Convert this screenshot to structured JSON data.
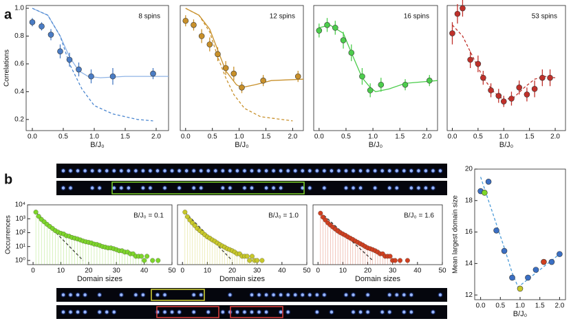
{
  "panel_labels": [
    "a",
    "b"
  ],
  "chart_data": [
    {
      "type": "scatter",
      "title": "8 spins",
      "xlabel": "B/J₀",
      "ylabel": "Correlations",
      "xlim": [
        -0.1,
        2.2
      ],
      "ylim": [
        0.12,
        1.02
      ],
      "xticks": [
        {
          "value": 0,
          "label": "0.0"
        },
        {
          "value": 0.5,
          "label": "0.5"
        },
        {
          "value": 1,
          "label": "1.0"
        },
        {
          "value": 1.5,
          "label": "1.5"
        },
        {
          "value": 2,
          "label": "2.0"
        }
      ],
      "yticks": [
        0.2,
        0.4,
        0.6,
        0.8,
        {
          "value": 1,
          "label": "1.0"
        }
      ],
      "points": {
        "color": "#4a7cc4",
        "x": [
          0,
          0.15,
          0.3,
          0.45,
          0.6,
          0.75,
          0.95,
          1.3,
          1.95
        ],
        "values": [
          0.9,
          0.87,
          0.81,
          0.69,
          0.63,
          0.56,
          0.51,
          0.51,
          0.53
        ],
        "errors": [
          0.03,
          0.03,
          0.04,
          0.05,
          0.05,
          0.05,
          0.05,
          0.06,
          0.04
        ]
      },
      "curves": [
        {
          "color": "#8fb4e6",
          "dashed": false,
          "x": [
            0,
            0.25,
            0.45,
            0.6,
            0.75,
            0.9,
            1.1,
            1.5,
            2.2
          ],
          "values": [
            1.0,
            0.95,
            0.8,
            0.65,
            0.55,
            0.51,
            0.5,
            0.51,
            0.51
          ]
        },
        {
          "color": "#4a86d0",
          "dashed": true,
          "x": [
            0,
            0.25,
            0.45,
            0.6,
            0.8,
            1.0,
            1.3,
            1.7,
            1.95
          ],
          "values": [
            1.0,
            0.95,
            0.8,
            0.6,
            0.42,
            0.3,
            0.24,
            0.2,
            0.19
          ]
        }
      ]
    },
    {
      "type": "scatter",
      "title": "12 spins",
      "xlabel": "B/J₀",
      "xlim": [
        -0.1,
        2.2
      ],
      "ylim": [
        0.12,
        1.02
      ],
      "xticks": [
        {
          "value": 0,
          "label": "0.0"
        },
        {
          "value": 0.5,
          "label": "0.5"
        },
        {
          "value": 1,
          "label": "1.0"
        },
        {
          "value": 1.5,
          "label": "1.5"
        },
        {
          "value": 2,
          "label": "2.0"
        }
      ],
      "points": {
        "color": "#c8902a",
        "x": [
          0,
          0.15,
          0.3,
          0.45,
          0.6,
          0.75,
          0.9,
          1.05,
          1.45,
          2.1
        ],
        "values": [
          0.91,
          0.88,
          0.8,
          0.74,
          0.67,
          0.57,
          0.53,
          0.43,
          0.48,
          0.51
        ],
        "errors": [
          0.04,
          0.04,
          0.05,
          0.05,
          0.05,
          0.05,
          0.05,
          0.04,
          0.04,
          0.04
        ]
      },
      "curves": [
        {
          "color": "#c8902a",
          "dashed": false,
          "x": [
            0,
            0.25,
            0.45,
            0.6,
            0.75,
            0.95,
            1.05,
            1.3,
            1.6,
            2.2
          ],
          "values": [
            1.0,
            0.95,
            0.85,
            0.7,
            0.55,
            0.45,
            0.43,
            0.45,
            0.48,
            0.49
          ]
        },
        {
          "color": "#c8902a",
          "dashed": true,
          "x": [
            0,
            0.25,
            0.45,
            0.6,
            0.75,
            0.9,
            1.1,
            1.4,
            2.0
          ],
          "values": [
            1.0,
            0.95,
            0.83,
            0.65,
            0.5,
            0.38,
            0.28,
            0.22,
            0.19
          ]
        }
      ]
    },
    {
      "type": "scatter",
      "title": "16 spins",
      "xlabel": "B/J₀",
      "xlim": [
        -0.1,
        2.2
      ],
      "ylim": [
        0.12,
        1.02
      ],
      "xticks": [
        {
          "value": 0,
          "label": "0.0"
        },
        {
          "value": 0.5,
          "label": "0.5"
        },
        {
          "value": 1,
          "label": "1.0"
        },
        {
          "value": 1.5,
          "label": "1.5"
        },
        {
          "value": 2,
          "label": "2.0"
        }
      ],
      "points": {
        "color": "#4ccd4c",
        "x": [
          0,
          0.15,
          0.3,
          0.45,
          0.6,
          0.8,
          0.95,
          1.15,
          1.6,
          2.05
        ],
        "values": [
          0.84,
          0.88,
          0.86,
          0.77,
          0.68,
          0.51,
          0.41,
          0.45,
          0.45,
          0.48
        ],
        "errors": [
          0.05,
          0.05,
          0.05,
          0.06,
          0.06,
          0.06,
          0.05,
          0.05,
          0.04,
          0.04
        ]
      },
      "curves": [
        {
          "color": "#4ccd4c",
          "dashed": false,
          "x": [
            0,
            0.2,
            0.45,
            0.6,
            0.8,
            0.95,
            1.05,
            1.3,
            1.6,
            2.2
          ],
          "values": [
            0.86,
            0.88,
            0.82,
            0.68,
            0.5,
            0.43,
            0.4,
            0.42,
            0.46,
            0.48
          ]
        }
      ]
    },
    {
      "type": "scatter",
      "title": "53 spins",
      "xlabel": "B/J₀",
      "xlim": [
        -0.1,
        2.2
      ],
      "ylim": [
        0.12,
        1.02
      ],
      "xticks": [
        {
          "value": 0,
          "label": "0.0"
        },
        {
          "value": 0.5,
          "label": "0.5"
        },
        {
          "value": 1,
          "label": "1.0"
        },
        {
          "value": 1.5,
          "label": "1.5"
        },
        {
          "value": 2,
          "label": "2.0"
        }
      ],
      "points": {
        "color": "#c0302a",
        "x": [
          0,
          0.1,
          0.2,
          0.35,
          0.5,
          0.6,
          0.75,
          0.9,
          1.0,
          1.15,
          1.3,
          1.45,
          1.6,
          1.75,
          1.9
        ],
        "values": [
          0.82,
          0.96,
          1.0,
          0.63,
          0.6,
          0.5,
          0.41,
          0.37,
          0.33,
          0.35,
          0.43,
          0.38,
          0.42,
          0.5,
          0.5
        ],
        "errors": [
          0.08,
          0.07,
          0.06,
          0.06,
          0.06,
          0.05,
          0.05,
          0.05,
          0.04,
          0.05,
          0.05,
          0.05,
          0.06,
          0.06,
          0.06
        ]
      },
      "curves": [
        {
          "color": "#c0302a",
          "dashed": true,
          "x": [
            0,
            0.2,
            0.4,
            0.6,
            0.8,
            1.0,
            1.2,
            1.4,
            1.6,
            1.8,
            2.0
          ],
          "values": [
            0.88,
            0.8,
            0.65,
            0.5,
            0.4,
            0.34,
            0.36,
            0.43,
            0.49,
            0.51,
            0.5
          ]
        }
      ]
    },
    {
      "type": "scatter",
      "log_y": true,
      "stems": true,
      "title": "B/J₀ = 0.1",
      "xlabel": "Domain sizes",
      "ylabel": "Occurrences",
      "xlim": [
        -2,
        50
      ],
      "ylim": [
        0.5,
        10000
      ],
      "xticks": [
        0,
        10,
        20,
        30,
        40,
        50
      ],
      "yticks": [
        {
          "value": 1,
          "label": "10⁰"
        },
        {
          "value": 10,
          "label": "10¹"
        },
        {
          "value": 100,
          "label": "10²"
        },
        {
          "value": 1000,
          "label": "10³"
        },
        {
          "value": 10000,
          "label": "10⁴"
        }
      ],
      "points": {
        "color": "#7ed62b",
        "x": [
          1,
          2,
          3,
          4,
          5,
          6,
          7,
          8,
          9,
          10,
          11,
          12,
          13,
          14,
          15,
          16,
          17,
          18,
          19,
          20,
          21,
          22,
          23,
          24,
          25,
          26,
          27,
          28,
          29,
          30,
          31,
          32,
          33,
          34,
          35,
          36,
          37,
          38,
          39,
          40,
          41,
          43,
          45
        ],
        "values": [
          3000,
          1500,
          900,
          600,
          400,
          280,
          200,
          140,
          110,
          90,
          80,
          60,
          55,
          45,
          40,
          35,
          30,
          25,
          22,
          20,
          18,
          15,
          14,
          12,
          10,
          9,
          8,
          8,
          7,
          6,
          5,
          5,
          4,
          4,
          3,
          3,
          2,
          2,
          2,
          1,
          2,
          1,
          1
        ]
      },
      "curves": [
        {
          "color": "#333333",
          "dashed": true,
          "x": [
            1,
            18
          ],
          "values": [
            3000,
            1
          ]
        }
      ]
    },
    {
      "type": "scatter",
      "log_y": true,
      "stems": true,
      "title": "B/J₀ = 1.0",
      "xlabel": "Domain sizes",
      "xlim": [
        -2,
        50
      ],
      "ylim": [
        0.5,
        10000
      ],
      "xticks": [
        0,
        10,
        20,
        30,
        40,
        50
      ],
      "points": {
        "color": "#c8c82a",
        "x": [
          1,
          2,
          3,
          4,
          5,
          6,
          7,
          8,
          9,
          10,
          11,
          12,
          13,
          14,
          15,
          16,
          17,
          18,
          19,
          20,
          21,
          22,
          23,
          24,
          25,
          26,
          27,
          28,
          29,
          30,
          32
        ],
        "values": [
          3000,
          1400,
          800,
          500,
          320,
          200,
          140,
          100,
          70,
          50,
          40,
          30,
          24,
          18,
          14,
          11,
          9,
          7,
          6,
          5,
          4,
          3,
          3,
          2,
          2,
          2,
          1,
          2,
          1,
          1,
          1
        ]
      },
      "curves": [
        {
          "color": "#333333",
          "dashed": true,
          "x": [
            1,
            20
          ],
          "values": [
            3000,
            1
          ]
        }
      ]
    },
    {
      "type": "scatter",
      "log_y": true,
      "stems": true,
      "title": "B/J₀ = 1.6",
      "xlabel": "Domain sizes",
      "xlim": [
        -2,
        50
      ],
      "ylim": [
        0.5,
        10000
      ],
      "xticks": [
        0,
        10,
        20,
        30,
        40,
        50
      ],
      "points": {
        "color": "#d04020",
        "x": [
          1,
          2,
          3,
          4,
          5,
          6,
          7,
          8,
          9,
          10,
          11,
          12,
          13,
          14,
          15,
          16,
          17,
          18,
          19,
          20,
          21,
          22,
          23,
          24,
          25,
          26,
          27,
          28,
          29,
          30,
          31,
          33,
          36
        ],
        "values": [
          2500,
          1300,
          800,
          500,
          350,
          250,
          180,
          130,
          100,
          80,
          65,
          50,
          40,
          32,
          25,
          20,
          16,
          13,
          10,
          8,
          7,
          6,
          5,
          4,
          3,
          3,
          2,
          2,
          2,
          1,
          1,
          1,
          1
        ]
      },
      "curves": [
        {
          "color": "#333333",
          "dashed": true,
          "x": [
            1,
            22
          ],
          "values": [
            3000,
            1
          ]
        }
      ]
    },
    {
      "type": "scatter",
      "xlabel": "B/J₀",
      "ylabel": "Mean largest domain size",
      "xlim": [
        -0.15,
        2.15
      ],
      "ylim": [
        11.7,
        20
      ],
      "xticks": [
        {
          "value": 0,
          "label": "0.0"
        },
        {
          "value": 0.5,
          "label": "0.5"
        },
        {
          "value": 1,
          "label": "1.0"
        },
        {
          "value": 1.5,
          "label": "1.5"
        },
        {
          "value": 2,
          "label": "2.0"
        }
      ],
      "yticks": [
        12,
        14,
        16,
        18,
        20
      ],
      "points": {
        "color": "#3a6fc4",
        "x": [
          0,
          0.1,
          0.2,
          0.4,
          0.6,
          0.8,
          1.0,
          1.2,
          1.4,
          1.6,
          1.8,
          2.0
        ],
        "values": [
          18.6,
          18.5,
          19.2,
          16.1,
          14.8,
          13.1,
          12.4,
          13.1,
          13.6,
          14.1,
          14.1,
          14.6
        ],
        "colors": [
          "#3a6fc4",
          "#7ed62b",
          "#3a6fc4",
          "#3a6fc4",
          "#3a6fc4",
          "#3a6fc4",
          "#c8c82a",
          "#3a6fc4",
          "#3a6fc4",
          "#d04020",
          "#3a6fc4",
          "#3a6fc4"
        ]
      },
      "curves": [
        {
          "color": "#4a9ad8",
          "dashed": true,
          "x": [
            0,
            0.4,
            0.6,
            0.8,
            0.95,
            1.2,
            1.6,
            2.0
          ],
          "values": [
            19.5,
            16.5,
            15,
            13.4,
            12.5,
            13,
            13.8,
            14.6
          ]
        }
      ]
    }
  ]
}
